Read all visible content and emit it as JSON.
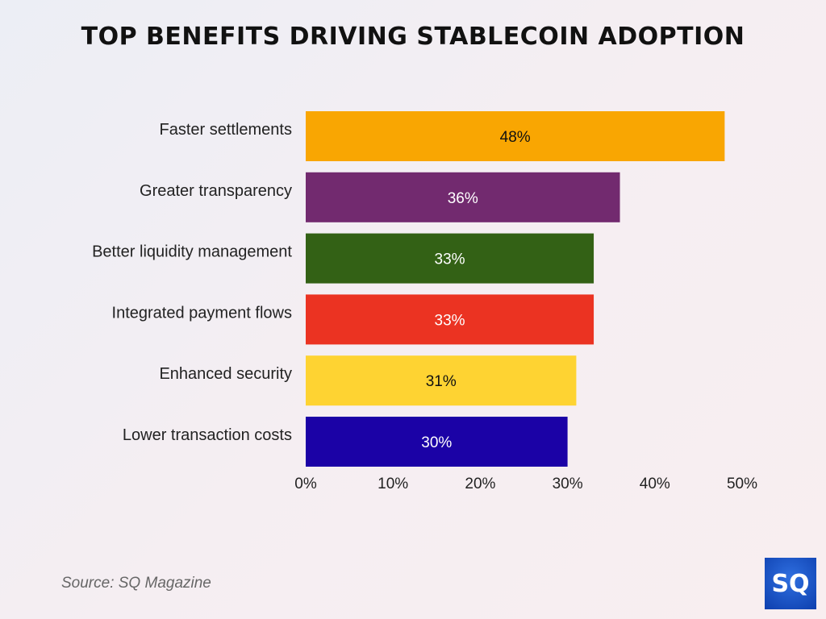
{
  "chart_data": {
    "type": "bar",
    "orientation": "horizontal",
    "title": "TOP BENEFITS DRIVING STABLECOIN ADOPTION",
    "categories": [
      "Faster settlements",
      "Greater transparency",
      "Better liquidity management",
      "Integrated payment flows",
      "Enhanced security",
      "Lower transaction costs"
    ],
    "values": [
      48,
      36,
      33,
      33,
      31,
      30
    ],
    "data_labels": [
      "48%",
      "36%",
      "33%",
      "33%",
      "31%",
      "30%"
    ],
    "colors": [
      "#f9a602",
      "#722a6f",
      "#336115",
      "#eb3322",
      "#fed332",
      "#1b02a6"
    ],
    "label_colors": [
      "#111111",
      "#ffffff",
      "#ffffff",
      "#ffffff",
      "#111111",
      "#ffffff"
    ],
    "xlim": [
      0,
      50
    ],
    "xticks": [
      "0%",
      "10%",
      "20%",
      "30%",
      "40%",
      "50%"
    ],
    "grid": false,
    "legend": "none"
  },
  "source": "Source: SQ Magazine",
  "logo": "SQ"
}
